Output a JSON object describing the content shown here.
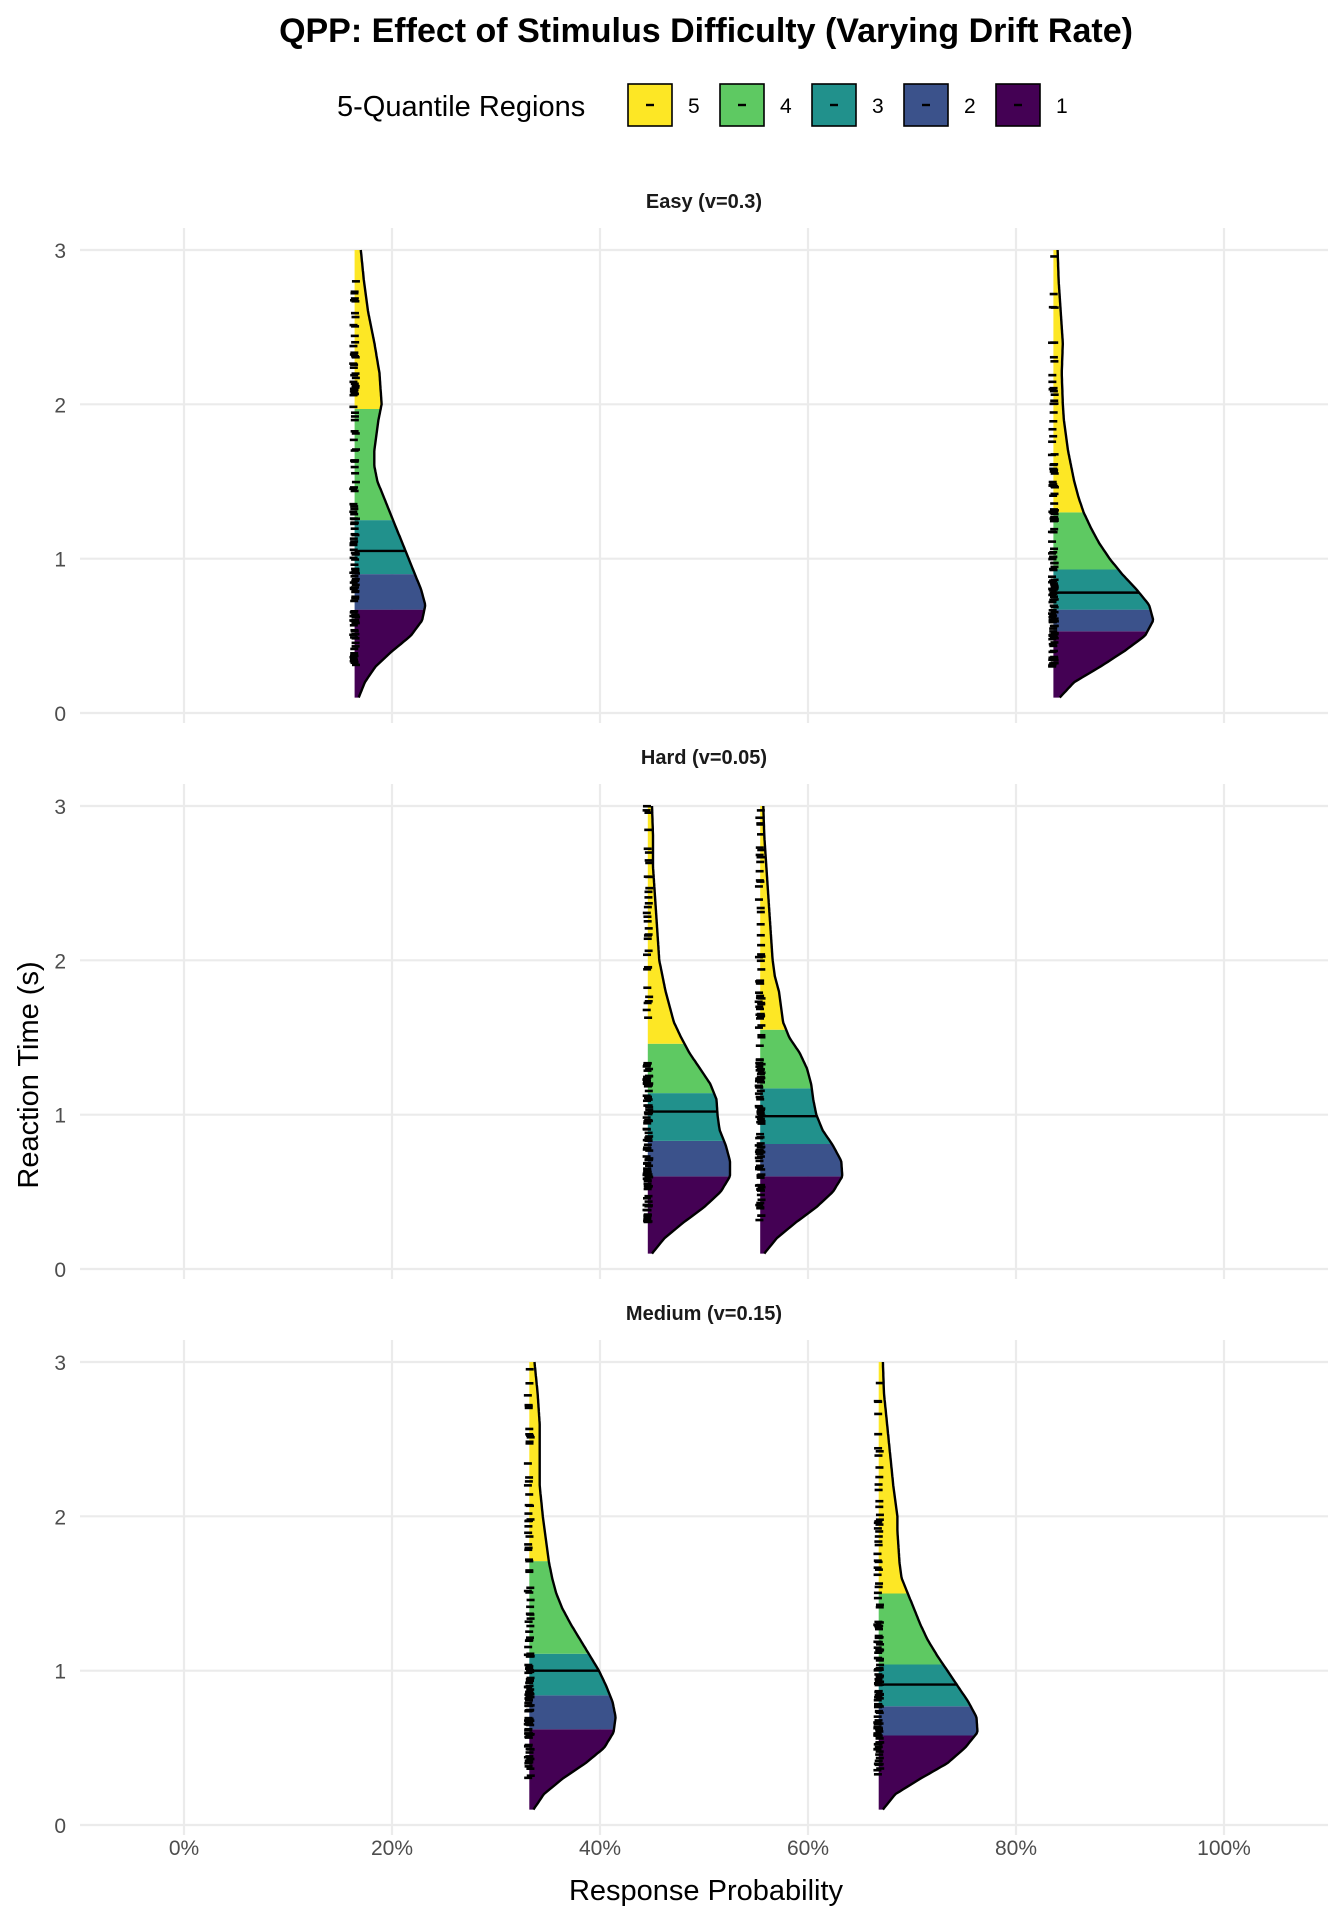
{
  "chart_data": {
    "type": "area",
    "title": "QPP: Effect of Stimulus Difficulty (Varying Drift Rate)",
    "xlabel": "Response Probability",
    "ylabel": "Reaction Time (s)",
    "xlim": [
      -0.1,
      1.1
    ],
    "ylim": [
      0,
      3
    ],
    "x_ticks": [
      0,
      0.2,
      0.4,
      0.6,
      0.8,
      1.0
    ],
    "x_tick_labels": [
      "0%",
      "20%",
      "40%",
      "60%",
      "80%",
      "100%"
    ],
    "y_ticks": [
      0,
      1,
      2,
      3
    ],
    "y_tick_labels": [
      "0",
      "1",
      "2",
      "3"
    ],
    "grid": true,
    "legend": {
      "title": "5-Quantile Regions",
      "position": "top",
      "items": [
        {
          "label": "5",
          "color": "#FDE725"
        },
        {
          "label": "4",
          "color": "#5EC962"
        },
        {
          "label": "3",
          "color": "#21918C"
        },
        {
          "label": "2",
          "color": "#3B528B"
        },
        {
          "label": "1",
          "color": "#440154"
        }
      ]
    },
    "panels": [
      {
        "label": "Easy (v=0.3)",
        "responses": [
          {
            "p": 0.164,
            "quantiles": [
              0.67,
              0.9,
              1.25,
              1.97
            ],
            "median": 1.05,
            "density_rt": [
              0.1,
              0.2,
              0.3,
              0.4,
              0.5,
              0.6,
              0.7,
              0.8,
              0.9,
              1.0,
              1.1,
              1.2,
              1.3,
              1.4,
              1.5,
              1.6,
              1.7,
              1.8,
              1.9,
              2.0,
              2.2,
              2.4,
              2.6,
              2.8,
              3.0
            ],
            "density_w": [
              0.004,
              0.01,
              0.02,
              0.036,
              0.054,
              0.065,
              0.068,
              0.064,
              0.058,
              0.052,
              0.046,
              0.04,
              0.034,
              0.028,
              0.022,
              0.019,
              0.019,
              0.021,
              0.023,
              0.026,
              0.024,
              0.019,
              0.013,
              0.009,
              0.006
            ]
          },
          {
            "p": 0.836,
            "quantiles": [
              0.53,
              0.67,
              0.93,
              1.3
            ],
            "median": 0.78,
            "density_rt": [
              0.1,
              0.2,
              0.3,
              0.4,
              0.5,
              0.6,
              0.7,
              0.8,
              0.9,
              1.0,
              1.1,
              1.2,
              1.3,
              1.4,
              1.5,
              1.6,
              1.7,
              1.8,
              1.9,
              2.0,
              2.2,
              2.4,
              2.6,
              2.8,
              3.0
            ],
            "density_w": [
              0.006,
              0.02,
              0.045,
              0.068,
              0.088,
              0.096,
              0.092,
              0.08,
              0.066,
              0.054,
              0.044,
              0.036,
              0.029,
              0.024,
              0.02,
              0.017,
              0.014,
              0.012,
              0.01,
              0.009,
              0.008,
              0.009,
              0.007,
              0.005,
              0.004
            ]
          }
        ]
      },
      {
        "label": "Hard (v=0.05)",
        "responses": [
          {
            "p": 0.446,
            "quantiles": [
              0.6,
              0.83,
              1.14,
              1.46
            ],
            "median": 1.02,
            "density_rt": [
              0.1,
              0.2,
              0.3,
              0.4,
              0.5,
              0.6,
              0.7,
              0.8,
              0.9,
              1.0,
              1.1,
              1.2,
              1.3,
              1.4,
              1.5,
              1.6,
              1.7,
              1.8,
              1.9,
              2.0,
              2.2,
              2.4,
              2.6,
              2.8,
              3.0
            ],
            "density_w": [
              0.004,
              0.016,
              0.034,
              0.054,
              0.07,
              0.079,
              0.079,
              0.075,
              0.069,
              0.067,
              0.066,
              0.06,
              0.05,
              0.04,
              0.032,
              0.025,
              0.021,
              0.017,
              0.014,
              0.011,
              0.009,
              0.007,
              0.005,
              0.005,
              0.004
            ]
          },
          {
            "p": 0.554,
            "quantiles": [
              0.6,
              0.81,
              1.17,
              1.55
            ],
            "median": 0.99,
            "density_rt": [
              0.1,
              0.2,
              0.3,
              0.4,
              0.5,
              0.6,
              0.7,
              0.8,
              0.9,
              1.0,
              1.1,
              1.2,
              1.3,
              1.4,
              1.5,
              1.6,
              1.7,
              1.8,
              1.9,
              2.0,
              2.2,
              2.4,
              2.6,
              2.8,
              3.0
            ],
            "density_w": [
              0.004,
              0.016,
              0.034,
              0.054,
              0.07,
              0.079,
              0.078,
              0.07,
              0.06,
              0.054,
              0.051,
              0.049,
              0.045,
              0.038,
              0.028,
              0.022,
              0.02,
              0.018,
              0.014,
              0.012,
              0.01,
              0.008,
              0.006,
              0.004,
              0.003
            ]
          }
        ]
      },
      {
        "label": "Medium (v=0.15)",
        "responses": [
          {
            "p": 0.332,
            "quantiles": [
              0.62,
              0.84,
              1.11,
              1.71
            ],
            "median": 1.0,
            "density_rt": [
              0.1,
              0.2,
              0.3,
              0.4,
              0.5,
              0.6,
              0.7,
              0.8,
              0.9,
              1.0,
              1.1,
              1.2,
              1.3,
              1.4,
              1.5,
              1.6,
              1.7,
              1.8,
              1.9,
              2.0,
              2.2,
              2.4,
              2.6,
              2.8,
              3.0
            ],
            "density_w": [
              0.004,
              0.014,
              0.032,
              0.054,
              0.072,
              0.081,
              0.083,
              0.08,
              0.074,
              0.067,
              0.058,
              0.049,
              0.04,
              0.032,
              0.026,
              0.022,
              0.019,
              0.017,
              0.015,
              0.013,
              0.01,
              0.01,
              0.01,
              0.008,
              0.005
            ]
          },
          {
            "p": 0.668,
            "quantiles": [
              0.58,
              0.77,
              1.04,
              1.5
            ],
            "median": 0.91,
            "density_rt": [
              0.1,
              0.2,
              0.3,
              0.4,
              0.5,
              0.6,
              0.7,
              0.8,
              0.9,
              1.0,
              1.1,
              1.2,
              1.3,
              1.4,
              1.5,
              1.6,
              1.7,
              1.8,
              1.9,
              2.0,
              2.2,
              2.4,
              2.6,
              2.8,
              3.0
            ],
            "density_w": [
              0.004,
              0.016,
              0.04,
              0.066,
              0.083,
              0.095,
              0.094,
              0.086,
              0.076,
              0.066,
              0.056,
              0.047,
              0.04,
              0.034,
              0.028,
              0.022,
              0.02,
              0.019,
              0.018,
              0.018,
              0.014,
              0.011,
              0.008,
              0.005,
              0.004
            ]
          }
        ]
      }
    ]
  }
}
